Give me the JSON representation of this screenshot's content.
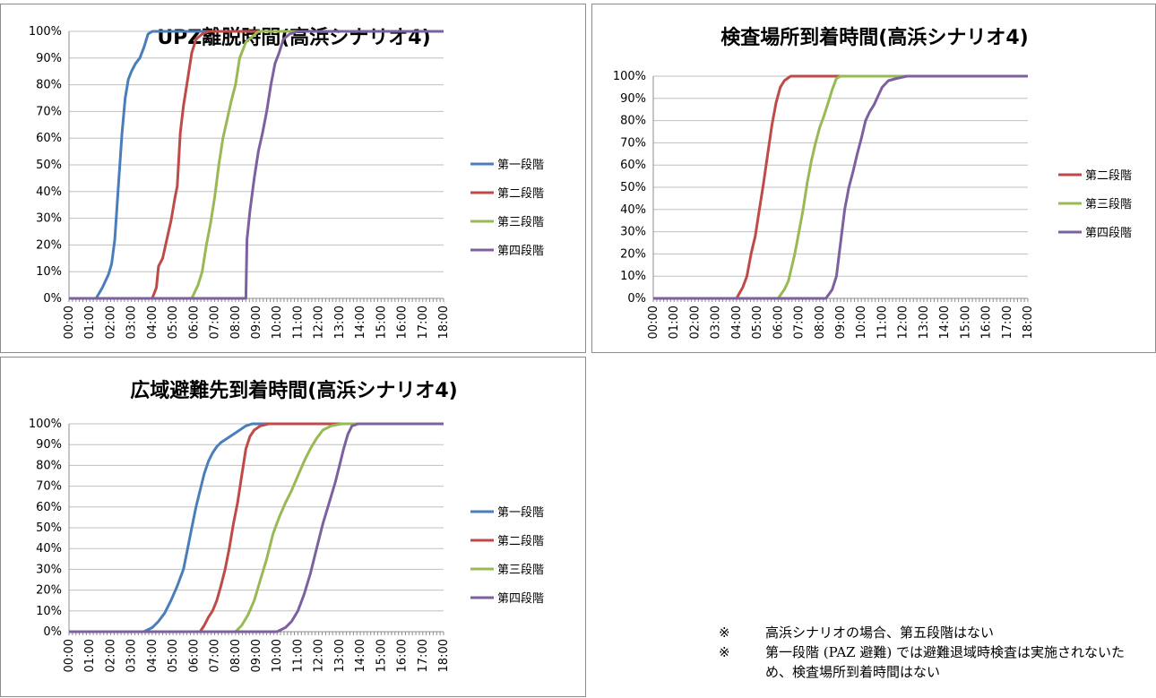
{
  "chart_data": [
    {
      "type": "line",
      "title": "UPZ離脱時間(高浜シナリオ4)",
      "xlabel": "",
      "ylabel": "",
      "x": [
        "00:00",
        "01:00",
        "02:00",
        "03:00",
        "04:00",
        "05:00",
        "06:00",
        "07:00",
        "08:00",
        "09:00",
        "10:00",
        "11:00",
        "12:00",
        "13:00",
        "14:00",
        "15:00",
        "16:00",
        "17:00",
        "18:00"
      ],
      "y_ticks": [
        "0%",
        "10%",
        "20%",
        "30%",
        "40%",
        "50%",
        "60%",
        "70%",
        "80%",
        "90%",
        "100%"
      ],
      "ylim": [
        0,
        100
      ],
      "legend_position": "right",
      "series": [
        {
          "name": "第一段階",
          "color": "#4a7ebb",
          "points": [
            [
              0,
              0
            ],
            [
              1.3,
              0
            ],
            [
              1.6,
              4
            ],
            [
              1.9,
              9
            ],
            [
              2.05,
              13
            ],
            [
              2.2,
              22
            ],
            [
              2.4,
              45
            ],
            [
              2.55,
              62
            ],
            [
              2.7,
              75
            ],
            [
              2.85,
              82
            ],
            [
              3.0,
              85
            ],
            [
              3.2,
              88
            ],
            [
              3.4,
              90
            ],
            [
              3.6,
              94
            ],
            [
              3.8,
              99
            ],
            [
              4.0,
              100
            ],
            [
              18,
              100
            ]
          ]
        },
        {
          "name": "第二段階",
          "color": "#be4b48",
          "points": [
            [
              0,
              0
            ],
            [
              4.0,
              0
            ],
            [
              4.2,
              4
            ],
            [
              4.3,
              12
            ],
            [
              4.5,
              15
            ],
            [
              4.7,
              22
            ],
            [
              4.9,
              29
            ],
            [
              5.1,
              38
            ],
            [
              5.2,
              42
            ],
            [
              5.35,
              62
            ],
            [
              5.5,
              72
            ],
            [
              5.7,
              82
            ],
            [
              5.9,
              92
            ],
            [
              6.1,
              97
            ],
            [
              6.4,
              99
            ],
            [
              6.7,
              100
            ],
            [
              18,
              100
            ]
          ]
        },
        {
          "name": "第三段階",
          "color": "#98b954",
          "points": [
            [
              0,
              0
            ],
            [
              5.9,
              0
            ],
            [
              6.2,
              5
            ],
            [
              6.4,
              10
            ],
            [
              6.6,
              20
            ],
            [
              6.8,
              28
            ],
            [
              7.0,
              38
            ],
            [
              7.2,
              50
            ],
            [
              7.4,
              60
            ],
            [
              7.6,
              67
            ],
            [
              7.8,
              74
            ],
            [
              8.0,
              80
            ],
            [
              8.2,
              90
            ],
            [
              8.5,
              96
            ],
            [
              8.8,
              98
            ],
            [
              9.1,
              100
            ],
            [
              18,
              100
            ]
          ]
        },
        {
          "name": "第四段階",
          "color": "#7d60a0",
          "points": [
            [
              0,
              0
            ],
            [
              8.45,
              0
            ],
            [
              8.5,
              0
            ],
            [
              8.55,
              22
            ],
            [
              8.7,
              33
            ],
            [
              8.9,
              45
            ],
            [
              9.1,
              55
            ],
            [
              9.3,
              62
            ],
            [
              9.5,
              70
            ],
            [
              9.7,
              80
            ],
            [
              9.9,
              88
            ],
            [
              10.1,
              92
            ],
            [
              10.3,
              97
            ],
            [
              10.6,
              99
            ],
            [
              11.0,
              100
            ],
            [
              18,
              100
            ]
          ]
        }
      ]
    },
    {
      "type": "line",
      "title": "検査場所到着時間(高浜シナリオ4)",
      "xlabel": "",
      "ylabel": "",
      "x": [
        "00:00",
        "01:00",
        "02:00",
        "03:00",
        "04:00",
        "05:00",
        "06:00",
        "07:00",
        "08:00",
        "09:00",
        "10:00",
        "11:00",
        "12:00",
        "13:00",
        "14:00",
        "15:00",
        "16:00",
        "17:00",
        "18:00"
      ],
      "y_ticks": [
        "0%",
        "10%",
        "20%",
        "30%",
        "40%",
        "50%",
        "60%",
        "70%",
        "80%",
        "90%",
        "100%"
      ],
      "ylim": [
        0,
        100
      ],
      "legend_position": "right",
      "series": [
        {
          "name": "第二段階",
          "color": "#be4b48",
          "points": [
            [
              0,
              0
            ],
            [
              4.0,
              0
            ],
            [
              4.3,
              5
            ],
            [
              4.5,
              10
            ],
            [
              4.7,
              20
            ],
            [
              4.9,
              28
            ],
            [
              5.1,
              40
            ],
            [
              5.3,
              52
            ],
            [
              5.5,
              65
            ],
            [
              5.7,
              78
            ],
            [
              5.9,
              88
            ],
            [
              6.1,
              95
            ],
            [
              6.3,
              98
            ],
            [
              6.6,
              100
            ],
            [
              18,
              100
            ]
          ]
        },
        {
          "name": "第三段階",
          "color": "#98b954",
          "points": [
            [
              0,
              0
            ],
            [
              6.0,
              0
            ],
            [
              6.3,
              4
            ],
            [
              6.5,
              8
            ],
            [
              6.8,
              20
            ],
            [
              7.0,
              30
            ],
            [
              7.2,
              40
            ],
            [
              7.4,
              52
            ],
            [
              7.6,
              62
            ],
            [
              7.8,
              70
            ],
            [
              8.0,
              77
            ],
            [
              8.2,
              82
            ],
            [
              8.4,
              88
            ],
            [
              8.6,
              94
            ],
            [
              8.8,
              99
            ],
            [
              9.0,
              100
            ],
            [
              18,
              100
            ]
          ]
        },
        {
          "name": "第四段階",
          "color": "#7d60a0",
          "points": [
            [
              0,
              0
            ],
            [
              8.3,
              0
            ],
            [
              8.6,
              4
            ],
            [
              8.8,
              10
            ],
            [
              9.0,
              25
            ],
            [
              9.2,
              40
            ],
            [
              9.4,
              50
            ],
            [
              9.6,
              57
            ],
            [
              9.8,
              65
            ],
            [
              10.0,
              72
            ],
            [
              10.2,
              80
            ],
            [
              10.4,
              84
            ],
            [
              10.6,
              87
            ],
            [
              10.8,
              91
            ],
            [
              11.0,
              95
            ],
            [
              11.3,
              98
            ],
            [
              11.7,
              99
            ],
            [
              12.2,
              100
            ],
            [
              18,
              100
            ]
          ]
        }
      ]
    },
    {
      "type": "line",
      "title": "広域避難先到着時間(高浜シナリオ4)",
      "xlabel": "",
      "ylabel": "",
      "x": [
        "00:00",
        "01:00",
        "02:00",
        "03:00",
        "04:00",
        "05:00",
        "06:00",
        "07:00",
        "08:00",
        "09:00",
        "10:00",
        "11:00",
        "12:00",
        "13:00",
        "14:00",
        "15:00",
        "16:00",
        "17:00",
        "18:00"
      ],
      "y_ticks": [
        "0%",
        "10%",
        "20%",
        "30%",
        "40%",
        "50%",
        "60%",
        "70%",
        "80%",
        "90%",
        "100%"
      ],
      "ylim": [
        0,
        100
      ],
      "legend_position": "right",
      "series": [
        {
          "name": "第一段階",
          "color": "#4a7ebb",
          "points": [
            [
              0,
              0
            ],
            [
              3.6,
              0
            ],
            [
              4.0,
              2
            ],
            [
              4.3,
              5
            ],
            [
              4.6,
              9
            ],
            [
              4.9,
              15
            ],
            [
              5.2,
              22
            ],
            [
              5.5,
              30
            ],
            [
              5.7,
              40
            ],
            [
              5.9,
              50
            ],
            [
              6.1,
              60
            ],
            [
              6.3,
              68
            ],
            [
              6.5,
              76
            ],
            [
              6.7,
              82
            ],
            [
              6.9,
              86
            ],
            [
              7.1,
              89
            ],
            [
              7.3,
              91
            ],
            [
              7.6,
              93
            ],
            [
              7.9,
              95
            ],
            [
              8.2,
              97
            ],
            [
              8.5,
              99
            ],
            [
              8.8,
              100
            ],
            [
              18,
              100
            ]
          ]
        },
        {
          "name": "第二段階",
          "color": "#be4b48",
          "points": [
            [
              0,
              0
            ],
            [
              6.3,
              0
            ],
            [
              6.5,
              3
            ],
            [
              6.7,
              7
            ],
            [
              6.9,
              10
            ],
            [
              7.1,
              15
            ],
            [
              7.3,
              22
            ],
            [
              7.5,
              30
            ],
            [
              7.7,
              40
            ],
            [
              7.9,
              52
            ],
            [
              8.1,
              62
            ],
            [
              8.3,
              75
            ],
            [
              8.5,
              88
            ],
            [
              8.7,
              94
            ],
            [
              8.9,
              97
            ],
            [
              9.2,
              99
            ],
            [
              9.6,
              100
            ],
            [
              18,
              100
            ]
          ]
        },
        {
          "name": "第三段階",
          "color": "#98b954",
          "points": [
            [
              0,
              0
            ],
            [
              8.0,
              0
            ],
            [
              8.3,
              3
            ],
            [
              8.6,
              8
            ],
            [
              8.9,
              15
            ],
            [
              9.2,
              25
            ],
            [
              9.5,
              35
            ],
            [
              9.8,
              47
            ],
            [
              10.1,
              55
            ],
            [
              10.4,
              62
            ],
            [
              10.7,
              68
            ],
            [
              11.0,
              75
            ],
            [
              11.3,
              82
            ],
            [
              11.6,
              88
            ],
            [
              11.9,
              93
            ],
            [
              12.2,
              97
            ],
            [
              12.6,
              99
            ],
            [
              13.1,
              100
            ],
            [
              18,
              100
            ]
          ]
        },
        {
          "name": "第四段階",
          "color": "#7d60a0",
          "points": [
            [
              0,
              0
            ],
            [
              10.0,
              0
            ],
            [
              10.4,
              2
            ],
            [
              10.7,
              5
            ],
            [
              11.0,
              10
            ],
            [
              11.3,
              18
            ],
            [
              11.6,
              28
            ],
            [
              11.9,
              40
            ],
            [
              12.2,
              52
            ],
            [
              12.5,
              62
            ],
            [
              12.8,
              72
            ],
            [
              13.0,
              80
            ],
            [
              13.2,
              88
            ],
            [
              13.4,
              95
            ],
            [
              13.6,
              99
            ],
            [
              13.9,
              100
            ],
            [
              18,
              100
            ]
          ]
        }
      ]
    }
  ],
  "notes": [
    {
      "mark": "※",
      "text": "高浜シナリオの場合、第五段階はない"
    },
    {
      "mark": "※",
      "text": "第一段階 (PAZ 避難) では避難退域時検査は実施されないため、検査場所到着時間はない"
    }
  ]
}
